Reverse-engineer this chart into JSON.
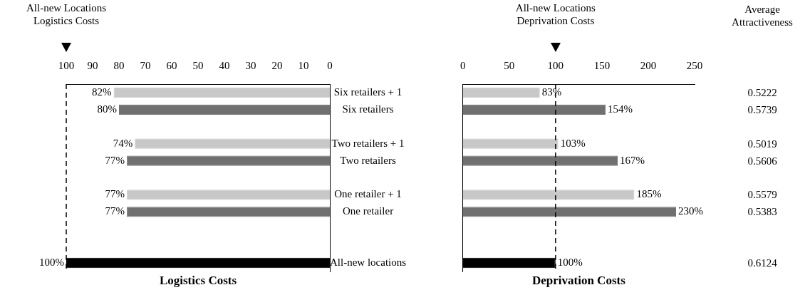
{
  "chart_data": [
    {
      "type": "bar",
      "orientation": "horizontal",
      "title": "Logistics Costs",
      "categories": [
        "Six retailers + 1",
        "Six retailers",
        null,
        "Two retailers + 1",
        "Two retailers",
        null,
        "One retailer + 1",
        "One retailer",
        null,
        null,
        "All-new locations"
      ],
      "values": [
        82,
        80,
        null,
        74,
        77,
        null,
        77,
        77,
        null,
        null,
        100
      ],
      "value_labels": [
        "82%",
        "80%",
        null,
        "74%",
        "77%",
        null,
        "77%",
        "77%",
        null,
        null,
        "100%"
      ],
      "colors": [
        "#c8c8c8",
        "#707070",
        "#ffffff",
        "#c8c8c8",
        "#707070",
        "#ffffff",
        "#c8c8c8",
        "#707070",
        "#ffffff",
        "#ffffff",
        "#000000"
      ],
      "xlim": [
        100,
        0
      ],
      "xticks": [
        100,
        90,
        80,
        70,
        60,
        50,
        40,
        30,
        20,
        10,
        0
      ],
      "ref_lines": [
        {
          "axis": "x",
          "value": 100,
          "label": "All-new Locations\nLogistics Costs",
          "line_style": "dashed"
        }
      ],
      "grid": false
    },
    {
      "type": "bar",
      "orientation": "horizontal",
      "title": "Deprivation Costs",
      "categories": [
        null,
        null,
        null,
        null,
        null,
        null,
        null,
        null,
        null,
        null,
        null
      ],
      "values": [
        83,
        154,
        null,
        103,
        167,
        null,
        185,
        230,
        null,
        null,
        100
      ],
      "value_labels": [
        "83%",
        "154%",
        null,
        "103%",
        "167%",
        null,
        "185%",
        "230%",
        null,
        null,
        "100%"
      ],
      "colors": [
        "#c8c8c8",
        "#707070",
        "#ffffff",
        "#c8c8c8",
        "#707070",
        "#ffffff",
        "#c8c8c8",
        "#707070",
        "#ffffff",
        "#ffffff",
        "#000000"
      ],
      "xlim": [
        0,
        250
      ],
      "xticks": [
        0,
        50,
        100,
        150,
        200,
        250
      ],
      "ref_lines": [
        {
          "axis": "x",
          "value": 100,
          "label": "All-new Locations\nDeprivation Costs",
          "line_style": "dashed"
        }
      ],
      "grid": false
    },
    {
      "type": "other",
      "title": "Average Attractiveness",
      "annotations": [
        "0.5222",
        "0.5739",
        "0.5019",
        "0.5606",
        "0.5579",
        "0.5383",
        "0.6124"
      ]
    }
  ]
}
